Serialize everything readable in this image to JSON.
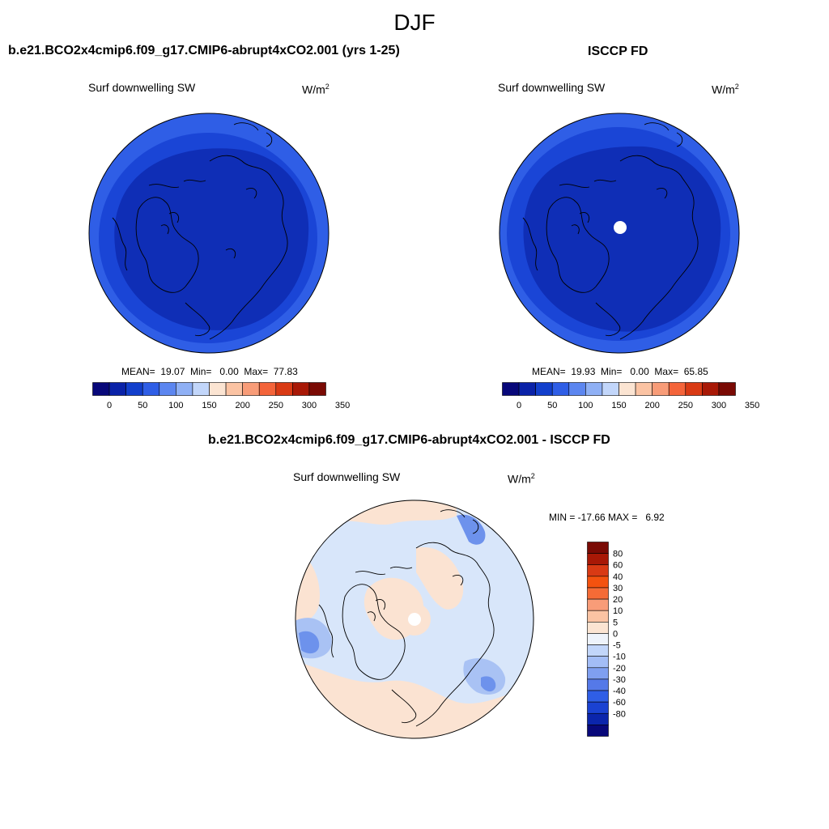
{
  "title": "DJF",
  "panels": {
    "model": {
      "title": "b.e21.BCO2x4cmip6.f09_g17.CMIP6-abrupt4xCO2.001 (yrs 1-25)",
      "variable": "Surf downwelling SW",
      "units_base": "W/m",
      "units_exp": "2",
      "stats": "MEAN=  19.07  Min=   0.00  Max=  77.83"
    },
    "obs": {
      "title": "ISCCP FD",
      "variable": "Surf downwelling SW",
      "units_base": "W/m",
      "units_exp": "2",
      "stats": "MEAN=  19.93  Min=   0.00  Max=  65.85"
    },
    "diff": {
      "title": "b.e21.BCO2x4cmip6.f09_g17.CMIP6-abrupt4xCO2.001 - ISCCP FD",
      "variable": "Surf downwelling SW",
      "units_base": "W/m",
      "units_exp": "2",
      "stats": "MIN = -17.66 MAX =   6.92"
    }
  },
  "colorbar_main": {
    "colors": [
      "#08087a",
      "#0a22a8",
      "#123fcc",
      "#2f5ee6",
      "#5c86f0",
      "#8fb0f5",
      "#c2d6fa",
      "#fbe4d2",
      "#fbc3a3",
      "#f89c78",
      "#f4643a",
      "#d93a14",
      "#a81806",
      "#7a0a04"
    ],
    "tick_labels": [
      "0",
      "50",
      "100",
      "150",
      "200",
      "250",
      "300",
      "350"
    ]
  },
  "colorbar_diff": {
    "colors_top_to_bottom": [
      "#7a0a04",
      "#a81806",
      "#d93a14",
      "#f4520f",
      "#f56b36",
      "#f89c78",
      "#fbc3a3",
      "#fbe4d2",
      "#eef3fb",
      "#c2d6fa",
      "#a3bdf6",
      "#7f9ff0",
      "#5579e8",
      "#2f5ee6",
      "#1a42d2",
      "#0b25ac",
      "#08087a"
    ],
    "tick_labels": [
      "80",
      "60",
      "40",
      "30",
      "20",
      "10",
      "5",
      "0",
      "-5",
      "-10",
      "-20",
      "-30",
      "-40",
      "-60",
      "-80"
    ]
  },
  "map_colors": {
    "sw_dark": "#0f2eb6",
    "sw_mid": "#1a45d6",
    "sw_light": "#2f5ee6",
    "diff_neutral": "#d8e6fa",
    "diff_pos": "#fbe3d2",
    "diff_neg": "#a9c2f4",
    "diff_neg_strong": "#6d92ec"
  }
}
